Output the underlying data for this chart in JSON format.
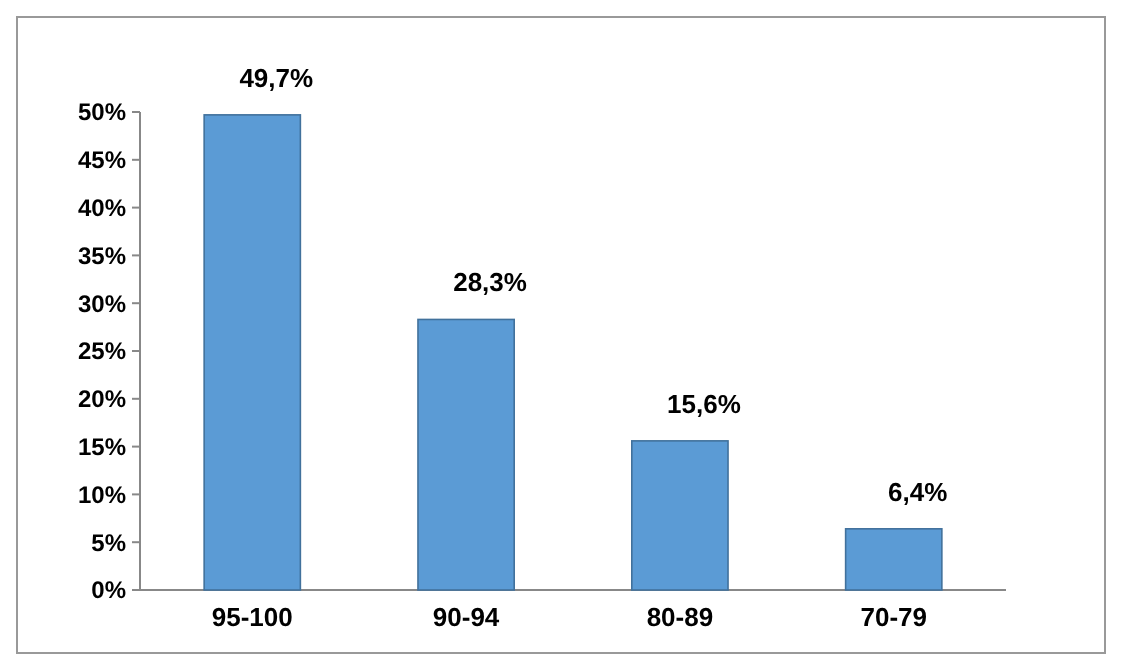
{
  "chart_data": {
    "type": "bar",
    "categories": [
      "95-100",
      "90-94",
      "80-89",
      "70-79"
    ],
    "values": [
      49.7,
      28.3,
      15.6,
      6.4
    ],
    "color": "#5b9bd5",
    "value_labels": [
      "49,7%",
      "28,3%",
      "15,6%",
      "6,4%"
    ],
    "ylim": [
      0,
      50
    ],
    "yticks": [
      {
        "value": 0,
        "label": "0%"
      },
      {
        "value": 5,
        "label": "5%"
      },
      {
        "value": 10,
        "label": "10%"
      },
      {
        "value": 15,
        "label": "15%"
      },
      {
        "value": 20,
        "label": "20%"
      },
      {
        "value": 25,
        "label": "25%"
      },
      {
        "value": 30,
        "label": "30%"
      },
      {
        "value": 35,
        "label": "35%"
      },
      {
        "value": 40,
        "label": "40%"
      },
      {
        "value": 45,
        "label": "45%"
      },
      {
        "value": 50,
        "label": "50%"
      }
    ],
    "grid": false
  }
}
